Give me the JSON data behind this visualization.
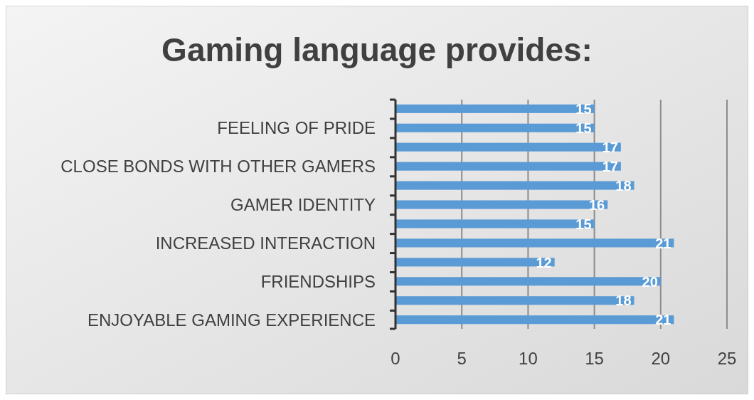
{
  "chart_data": {
    "type": "bar",
    "orientation": "horizontal",
    "title": "Gaming language provides:",
    "categories": [
      null,
      "FEELING OF PRIDE",
      null,
      "CLOSE BONDS WITH OTHER GAMERS",
      null,
      "GAMER IDENTITY",
      null,
      "INCREASED INTERACTION",
      null,
      "FRIENDSHIPS",
      null,
      "ENJOYABLE GAMING EXPERIENCE"
    ],
    "values": [
      15,
      15,
      17,
      17,
      18,
      16,
      15,
      21,
      12,
      20,
      18,
      21
    ],
    "color": "#5b9bd5",
    "data_labels": true,
    "xlim": [
      0,
      25
    ],
    "xticks": [
      0,
      5,
      10,
      15,
      20,
      25
    ],
    "grid": "x"
  }
}
